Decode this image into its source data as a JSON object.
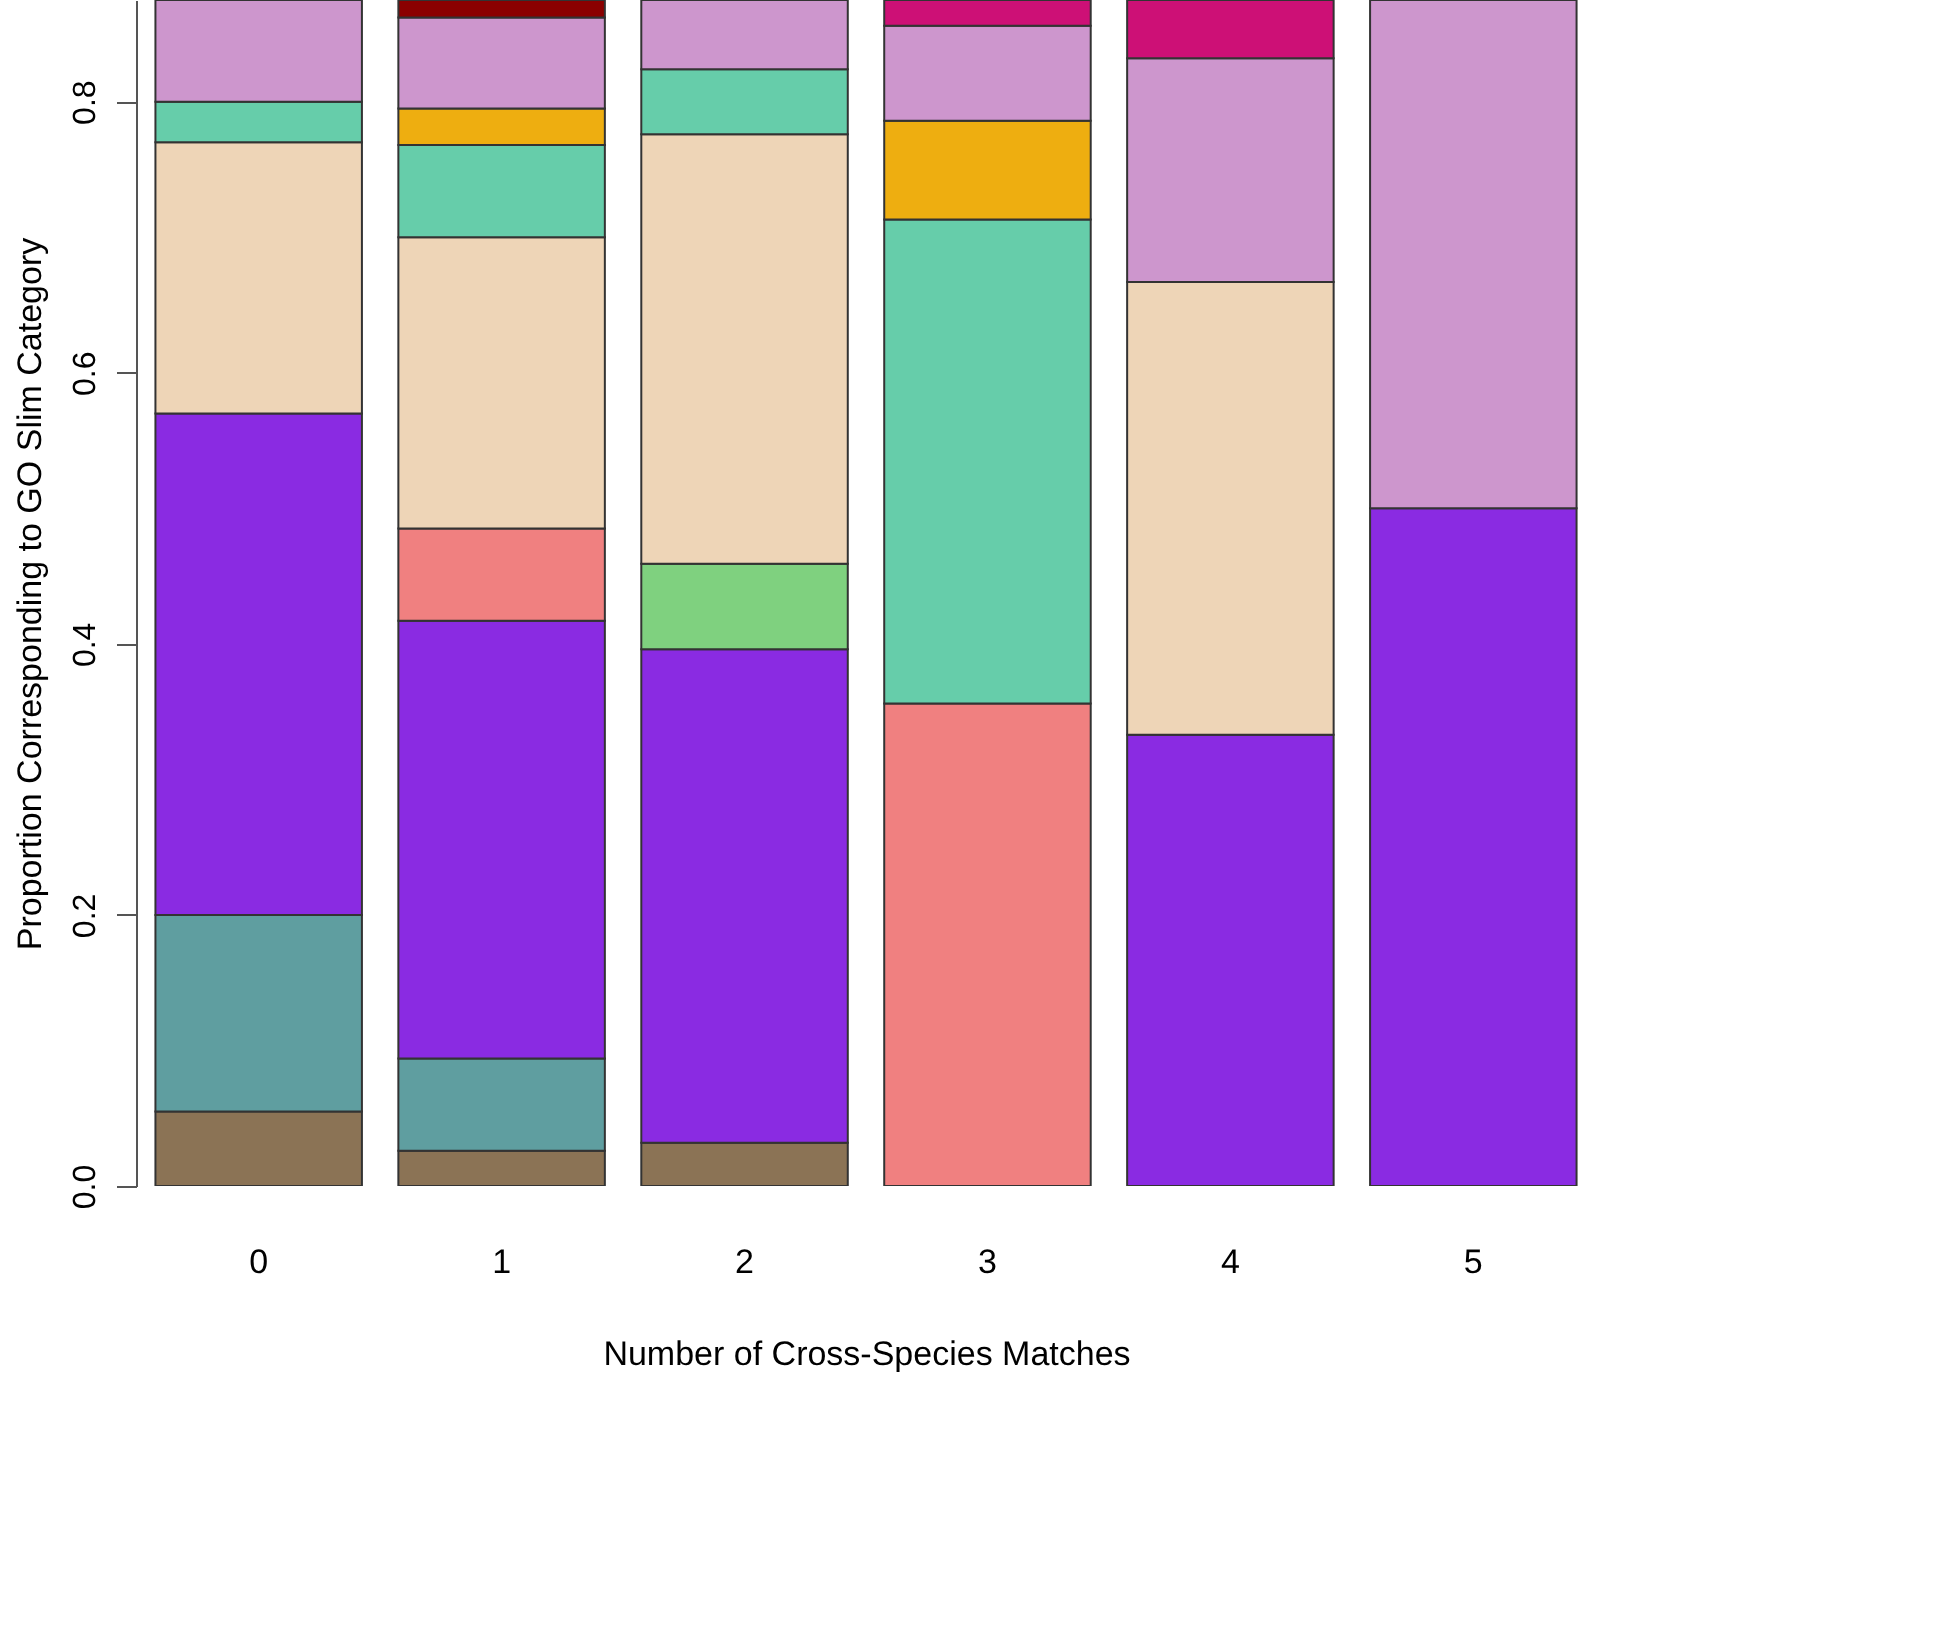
{
  "chart_data": {
    "type": "bar",
    "stacked": true,
    "xlabel": "Number of Cross-Species Matches",
    "ylabel": "Proportion Corresponding to GO Slim Category",
    "categories": [
      "0",
      "1",
      "2",
      "3",
      "4",
      "5"
    ],
    "ylim": [
      0,
      0.875
    ],
    "yticks": [
      {
        "value": 0,
        "label": "0.0"
      },
      {
        "value": 0.2,
        "label": "0.2"
      },
      {
        "value": 0.4,
        "label": "0.4"
      },
      {
        "value": 0.6,
        "label": "0.6"
      },
      {
        "value": 0.8,
        "label": "0.8"
      }
    ],
    "grid": false,
    "legend": false,
    "series": [
      {
        "color": "#8b7355",
        "values": [
          0.055,
          0.026,
          0.032,
          null,
          null,
          null
        ]
      },
      {
        "color": "#5f9ea0",
        "values": [
          0.145,
          0.068,
          null,
          null,
          null,
          null
        ]
      },
      {
        "color": "#8a2be2",
        "values": [
          0.37,
          0.323,
          0.364,
          null,
          0.333,
          0.5
        ]
      },
      {
        "color": "#f08080",
        "values": [
          null,
          0.068,
          null,
          0.356,
          null,
          null
        ]
      },
      {
        "color": "#7fd17f",
        "values": [
          null,
          null,
          0.063,
          null,
          null,
          null
        ]
      },
      {
        "color": "#eed5b7",
        "values": [
          0.2,
          0.215,
          0.317,
          null,
          0.334,
          null
        ]
      },
      {
        "color": "#66cdaa",
        "values": [
          0.03,
          0.068,
          0.048,
          0.357,
          null,
          null
        ]
      },
      {
        "color": "#eeae10",
        "values": [
          null,
          0.027,
          null,
          0.073,
          null,
          null
        ]
      },
      {
        "color": "#cd96cd",
        "values": [
          0.075,
          0.067,
          0.051,
          0.07,
          0.165,
          0.375
        ]
      },
      {
        "color": "#cd1076",
        "values": [
          null,
          null,
          null,
          0.019,
          0.043,
          null
        ]
      },
      {
        "color": "#8b0000",
        "values": [
          null,
          0.013,
          null,
          null,
          null,
          null
        ]
      }
    ]
  }
}
